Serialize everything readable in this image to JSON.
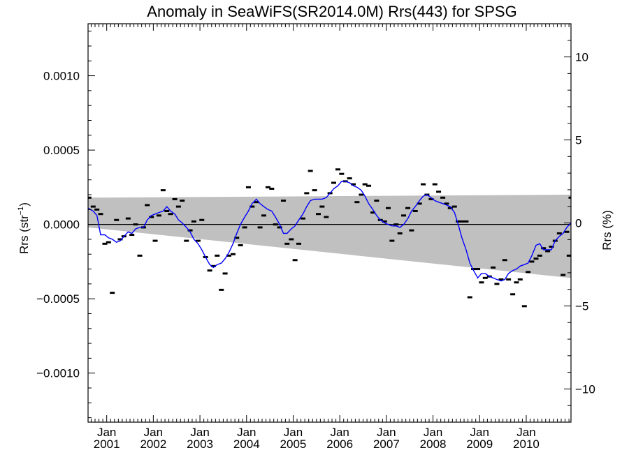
{
  "chart_data": {
    "type": "scatter",
    "title": "Anomaly in SeaWiFS(SR2014.0M) Rrs(443) for SPSG",
    "ylabel_text": "Rrs (str",
    "ylabel_sup": "−1",
    "ylabel_close": ")",
    "y2label": "Rrs (%)",
    "ylim": [
      -0.00133,
      0.00135
    ],
    "y2lim": [
      -12,
      12
    ],
    "xlim": [
      2000.6,
      2010.96
    ],
    "y_ticks": [
      {
        "value": 0.001,
        "label": "0.0010"
      },
      {
        "value": 0.0005,
        "label": "0.0005"
      },
      {
        "value": 0.0,
        "label": "0.0000"
      },
      {
        "value": -0.0005,
        "label": "−0.0005"
      },
      {
        "value": -0.001,
        "label": "−0.0010"
      }
    ],
    "y2_ticks": [
      {
        "value": 10,
        "label": "10"
      },
      {
        "value": 5,
        "label": "5"
      },
      {
        "value": 0,
        "label": "0"
      },
      {
        "value": -5,
        "label": "−5"
      },
      {
        "value": -10,
        "label": "−10"
      }
    ],
    "x_ticks": [
      {
        "value": 2001.0,
        "month": "Jan",
        "year": "2001"
      },
      {
        "value": 2002.0,
        "month": "Jan",
        "year": "2002"
      },
      {
        "value": 2003.0,
        "month": "Jan",
        "year": "2003"
      },
      {
        "value": 2004.0,
        "month": "Jan",
        "year": "2004"
      },
      {
        "value": 2005.0,
        "month": "Jan",
        "year": "2005"
      },
      {
        "value": 2006.0,
        "month": "Jan",
        "year": "2006"
      },
      {
        "value": 2007.0,
        "month": "Jan",
        "year": "2007"
      },
      {
        "value": 2008.0,
        "month": "Jan",
        "year": "2008"
      },
      {
        "value": 2009.0,
        "month": "Jan",
        "year": "2009"
      },
      {
        "value": 2010.0,
        "month": "Jan",
        "year": "2010"
      }
    ],
    "band": {
      "color": "#c0c0c0",
      "upper": [
        [
          2000.6,
          0.00018
        ],
        [
          2010.96,
          0.0002
        ]
      ],
      "lower": [
        [
          2000.6,
          -2e-05
        ],
        [
          2010.96,
          -0.00036
        ]
      ]
    },
    "zero_line": true,
    "series": [
      {
        "kind": "points",
        "color": "#000000",
        "points": [
          [
            2000.62,
            0.00018
          ],
          [
            2000.71,
            0.00012
          ],
          [
            2000.79,
            0.0001
          ],
          [
            2000.87,
            7e-05
          ],
          [
            2000.96,
            -0.00013
          ],
          [
            2001.04,
            -0.00012
          ],
          [
            2001.12,
            -0.00046
          ],
          [
            2001.21,
            3e-05
          ],
          [
            2001.29,
            -0.0001
          ],
          [
            2001.37,
            -8e-05
          ],
          [
            2001.46,
            4e-05
          ],
          [
            2001.54,
            -7e-05
          ],
          [
            2001.62,
            0.0
          ],
          [
            2001.71,
            -0.00021
          ],
          [
            2001.79,
            -2e-05
          ],
          [
            2001.87,
            0.00013
          ],
          [
            2001.96,
            5e-05
          ],
          [
            2002.04,
            -0.00011
          ],
          [
            2002.12,
            6e-05
          ],
          [
            2002.21,
            0.00023
          ],
          [
            2002.29,
            9e-05
          ],
          [
            2002.37,
            7e-05
          ],
          [
            2002.46,
            0.00017
          ],
          [
            2002.54,
            0.00012
          ],
          [
            2002.62,
            0.00016
          ],
          [
            2002.71,
            -0.00011
          ],
          [
            2002.79,
            -4e-05
          ],
          [
            2002.87,
            2e-05
          ],
          [
            2002.96,
            -0.00011
          ],
          [
            2003.04,
            3e-05
          ],
          [
            2003.12,
            -0.00022
          ],
          [
            2003.21,
            -0.00031
          ],
          [
            2003.29,
            -0.00028
          ],
          [
            2003.37,
            -0.00021
          ],
          [
            2003.46,
            -0.00044
          ],
          [
            2003.54,
            -0.00033
          ],
          [
            2003.62,
            -0.00021
          ],
          [
            2003.71,
            -0.0002
          ],
          [
            2003.79,
            -9e-05
          ],
          [
            2003.87,
            -0.00014
          ],
          [
            2003.96,
            -2e-05
          ],
          [
            2004.04,
            0.00025
          ],
          [
            2004.12,
            0.00012
          ],
          [
            2004.21,
            0.00015
          ],
          [
            2004.29,
            -2e-05
          ],
          [
            2004.37,
            6e-05
          ],
          [
            2004.46,
            0.00025
          ],
          [
            2004.54,
            0.00024
          ],
          [
            2004.62,
            0.0
          ],
          [
            2004.71,
            -2e-05
          ],
          [
            2004.79,
            0.00016
          ],
          [
            2004.87,
            -0.00013
          ],
          [
            2004.96,
            -0.0001
          ],
          [
            2005.04,
            -0.00024
          ],
          [
            2005.12,
            -0.00013
          ],
          [
            2005.21,
            4e-05
          ],
          [
            2005.29,
            0.00021
          ],
          [
            2005.37,
            0.00036
          ],
          [
            2005.46,
            0.00023
          ],
          [
            2005.54,
            7e-05
          ],
          [
            2005.62,
            0.00012
          ],
          [
            2005.71,
            5e-05
          ],
          [
            2005.79,
            0.00021
          ],
          [
            2005.87,
            0.00028
          ],
          [
            2005.96,
            0.00037
          ],
          [
            2006.04,
            0.00034
          ],
          [
            2006.12,
            0.00029
          ],
          [
            2006.21,
            0.00031
          ],
          [
            2006.29,
            0.00027
          ],
          [
            2006.37,
            0.00015
          ],
          [
            2006.46,
            0.0002
          ],
          [
            2006.54,
            0.00027
          ],
          [
            2006.62,
            0.00026
          ],
          [
            2006.71,
            8e-05
          ],
          [
            2006.79,
            0.00016
          ],
          [
            2006.87,
            3e-05
          ],
          [
            2006.96,
            2e-05
          ],
          [
            2007.04,
            0.00011
          ],
          [
            2007.12,
            -0.00011
          ],
          [
            2007.21,
            0.0
          ],
          [
            2007.29,
            -6e-05
          ],
          [
            2007.37,
            6e-05
          ],
          [
            2007.46,
            0.00011
          ],
          [
            2007.54,
            -4e-05
          ],
          [
            2007.62,
            9e-05
          ],
          [
            2007.71,
            0.00014
          ],
          [
            2007.79,
            0.00027
          ],
          [
            2007.87,
            0.0002
          ],
          [
            2007.96,
            0.00017
          ],
          [
            2008.04,
            0.00027
          ],
          [
            2008.12,
            0.00022
          ],
          [
            2008.21,
            0.00018
          ],
          [
            2008.29,
            0.00014
          ],
          [
            2008.37,
            0.00011
          ],
          [
            2008.46,
            0.00012
          ],
          [
            2008.54,
            2e-05
          ],
          [
            2008.62,
            2e-05
          ],
          [
            2008.71,
            2e-05
          ],
          [
            2008.79,
            -0.00049
          ],
          [
            2008.87,
            -0.0003
          ],
          [
            2008.96,
            -0.0003
          ],
          [
            2009.04,
            -0.00039
          ],
          [
            2009.12,
            -0.00036
          ],
          [
            2009.21,
            -0.00035
          ],
          [
            2009.29,
            -0.00029
          ],
          [
            2009.37,
            -0.0004
          ],
          [
            2009.46,
            -0.00037
          ],
          [
            2009.54,
            -0.00024
          ],
          [
            2009.62,
            -0.00037
          ],
          [
            2009.71,
            -0.00047
          ],
          [
            2009.79,
            -0.00039
          ],
          [
            2009.87,
            -0.00037
          ],
          [
            2009.96,
            -0.00055
          ],
          [
            2010.04,
            -0.00032
          ],
          [
            2010.12,
            -0.00025
          ],
          [
            2010.21,
            -0.00023
          ],
          [
            2010.29,
            -0.00021
          ],
          [
            2010.37,
            -0.00016
          ],
          [
            2010.46,
            -0.00018
          ],
          [
            2010.54,
            -0.00015
          ],
          [
            2010.62,
            -0.00011
          ],
          [
            2010.71,
            -6e-05
          ],
          [
            2010.79,
            -0.00034
          ],
          [
            2010.87,
            -5e-05
          ],
          [
            2010.92,
            -0.00021
          ],
          [
            2010.96,
            0.00018
          ]
        ]
      },
      {
        "kind": "line",
        "color": "#0000ff",
        "points": [
          [
            2000.6,
            0.00011
          ],
          [
            2000.71,
            9e-05
          ],
          [
            2000.79,
            6e-05
          ],
          [
            2000.87,
            -7e-05
          ],
          [
            2000.96,
            -7e-05
          ],
          [
            2001.04,
            -9e-05
          ],
          [
            2001.12,
            -0.0001
          ],
          [
            2001.21,
            -0.00012
          ],
          [
            2001.29,
            -0.00011
          ],
          [
            2001.37,
            -8e-05
          ],
          [
            2001.46,
            -5e-05
          ],
          [
            2001.54,
            -6e-05
          ],
          [
            2001.62,
            -3e-05
          ],
          [
            2001.71,
            -2e-05
          ],
          [
            2001.79,
            -2e-05
          ],
          [
            2001.87,
            3e-05
          ],
          [
            2001.96,
            6e-05
          ],
          [
            2002.04,
            7e-05
          ],
          [
            2002.12,
            8e-05
          ],
          [
            2002.21,
            9e-05
          ],
          [
            2002.29,
            0.00012
          ],
          [
            2002.37,
            9e-05
          ],
          [
            2002.46,
            7e-05
          ],
          [
            2002.54,
            3e-05
          ],
          [
            2002.62,
            1e-05
          ],
          [
            2002.71,
            -2e-05
          ],
          [
            2002.79,
            -5e-05
          ],
          [
            2002.87,
            -0.0001
          ],
          [
            2002.96,
            -0.00013
          ],
          [
            2003.04,
            -0.00017
          ],
          [
            2003.12,
            -0.00022
          ],
          [
            2003.21,
            -0.00027
          ],
          [
            2003.29,
            -0.00029
          ],
          [
            2003.37,
            -0.00027
          ],
          [
            2003.46,
            -0.00026
          ],
          [
            2003.54,
            -0.00023
          ],
          [
            2003.62,
            -0.00019
          ],
          [
            2003.71,
            -0.00013
          ],
          [
            2003.79,
            -6e-05
          ],
          [
            2003.87,
            0.0
          ],
          [
            2003.96,
            5e-05
          ],
          [
            2004.04,
            9e-05
          ],
          [
            2004.12,
            0.00014
          ],
          [
            2004.21,
            0.00017
          ],
          [
            2004.29,
            0.00014
          ],
          [
            2004.37,
            0.00012
          ],
          [
            2004.46,
            0.0001
          ],
          [
            2004.54,
            9e-05
          ],
          [
            2004.62,
            5e-05
          ],
          [
            2004.71,
            0.0
          ],
          [
            2004.79,
            -6e-05
          ],
          [
            2004.87,
            -6e-05
          ],
          [
            2004.96,
            -3e-05
          ],
          [
            2005.04,
            -1e-05
          ],
          [
            2005.12,
            3e-05
          ],
          [
            2005.21,
            7e-05
          ],
          [
            2005.29,
            0.00012
          ],
          [
            2005.37,
            0.00016
          ],
          [
            2005.46,
            0.00017
          ],
          [
            2005.54,
            0.00017
          ],
          [
            2005.62,
            0.00017
          ],
          [
            2005.71,
            0.00018
          ],
          [
            2005.79,
            0.00021
          ],
          [
            2005.87,
            0.00024
          ],
          [
            2005.96,
            0.00026
          ],
          [
            2006.04,
            0.00029
          ],
          [
            2006.12,
            0.00029
          ],
          [
            2006.21,
            0.00028
          ],
          [
            2006.29,
            0.00026
          ],
          [
            2006.37,
            0.00025
          ],
          [
            2006.46,
            0.00023
          ],
          [
            2006.54,
            0.00019
          ],
          [
            2006.62,
            0.00014
          ],
          [
            2006.71,
            0.0001
          ],
          [
            2006.79,
            6e-05
          ],
          [
            2006.87,
            3e-05
          ],
          [
            2006.96,
            1e-05
          ],
          [
            2007.04,
            0.0
          ],
          [
            2007.12,
            -1e-05
          ],
          [
            2007.21,
            -1e-05
          ],
          [
            2007.29,
            -2e-05
          ],
          [
            2007.37,
            0.0
          ],
          [
            2007.46,
            4e-05
          ],
          [
            2007.54,
            9e-05
          ],
          [
            2007.62,
            0.00012
          ],
          [
            2007.71,
            0.00016
          ],
          [
            2007.79,
            0.00019
          ],
          [
            2007.87,
            0.0002
          ],
          [
            2007.96,
            0.00018
          ],
          [
            2008.04,
            0.00016
          ],
          [
            2008.12,
            0.00015
          ],
          [
            2008.21,
            0.00014
          ],
          [
            2008.29,
            0.00013
          ],
          [
            2008.37,
            0.00012
          ],
          [
            2008.46,
            8e-05
          ],
          [
            2008.54,
            0.0
          ],
          [
            2008.62,
            -9e-05
          ],
          [
            2008.71,
            -0.00017
          ],
          [
            2008.79,
            -0.00026
          ],
          [
            2008.87,
            -0.00031
          ],
          [
            2008.96,
            -0.00036
          ],
          [
            2009.04,
            -0.00033
          ],
          [
            2009.12,
            -0.00033
          ],
          [
            2009.21,
            -0.00035
          ],
          [
            2009.29,
            -0.00036
          ],
          [
            2009.37,
            -0.00037
          ],
          [
            2009.46,
            -0.00038
          ],
          [
            2009.54,
            -0.00037
          ],
          [
            2009.62,
            -0.00033
          ],
          [
            2009.71,
            -0.00031
          ],
          [
            2009.79,
            -0.0003
          ],
          [
            2009.87,
            -0.00028
          ],
          [
            2009.96,
            -0.00027
          ],
          [
            2010.04,
            -0.00026
          ],
          [
            2010.12,
            -0.00021
          ],
          [
            2010.21,
            -0.00014
          ],
          [
            2010.29,
            -0.00013
          ],
          [
            2010.37,
            -0.00017
          ],
          [
            2010.46,
            -0.00017
          ],
          [
            2010.54,
            -0.00017
          ],
          [
            2010.62,
            -0.00011
          ],
          [
            2010.71,
            -8e-05
          ],
          [
            2010.79,
            -6e-05
          ],
          [
            2010.87,
            -2e-05
          ],
          [
            2010.96,
            1e-05
          ]
        ]
      }
    ]
  }
}
